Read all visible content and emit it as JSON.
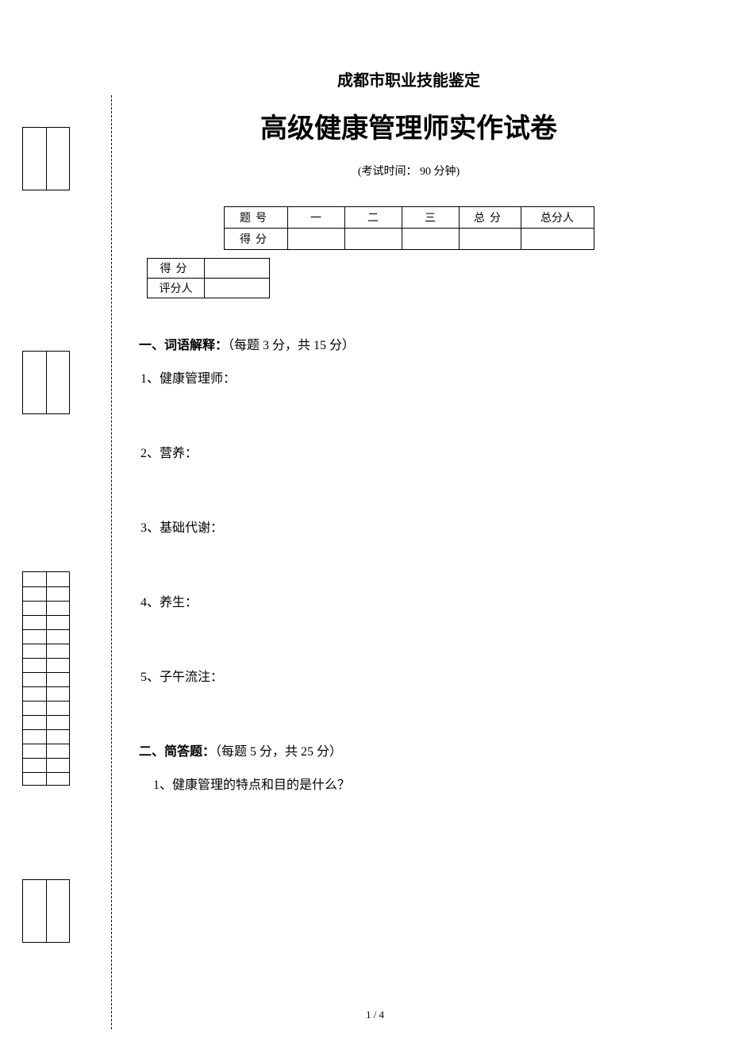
{
  "header": {
    "small_title": "成都市职业技能鉴定",
    "large_title": "高级健康管理师实作试卷",
    "exam_time": "(考试时间： 90 分钟)"
  },
  "score_table": {
    "row1_label": "题号",
    "cols": [
      "一",
      "二",
      "三"
    ],
    "total_label": "总分",
    "total_person": "总分人",
    "row2_label": "得分"
  },
  "grader_table": {
    "row1": "得分",
    "row2": "评分人"
  },
  "section1": {
    "title": "一、词语解释：",
    "desc": "（每题 3 分，共 15 分）",
    "questions": [
      "1、健康管理师：",
      "2、营养：",
      "3、基础代谢：",
      "4、养生：",
      "5、子午流注："
    ]
  },
  "section2": {
    "title": "二、简答题：",
    "desc": "（每题 5 分，共 25 分）",
    "questions": [
      "1、健康管理的特点和目的是什么？"
    ]
  },
  "page_number": "1 / 4",
  "margin_box3": {
    "row_count": 15
  },
  "colors": {
    "text": "#000000",
    "background": "#ffffff",
    "border": "#000000"
  }
}
